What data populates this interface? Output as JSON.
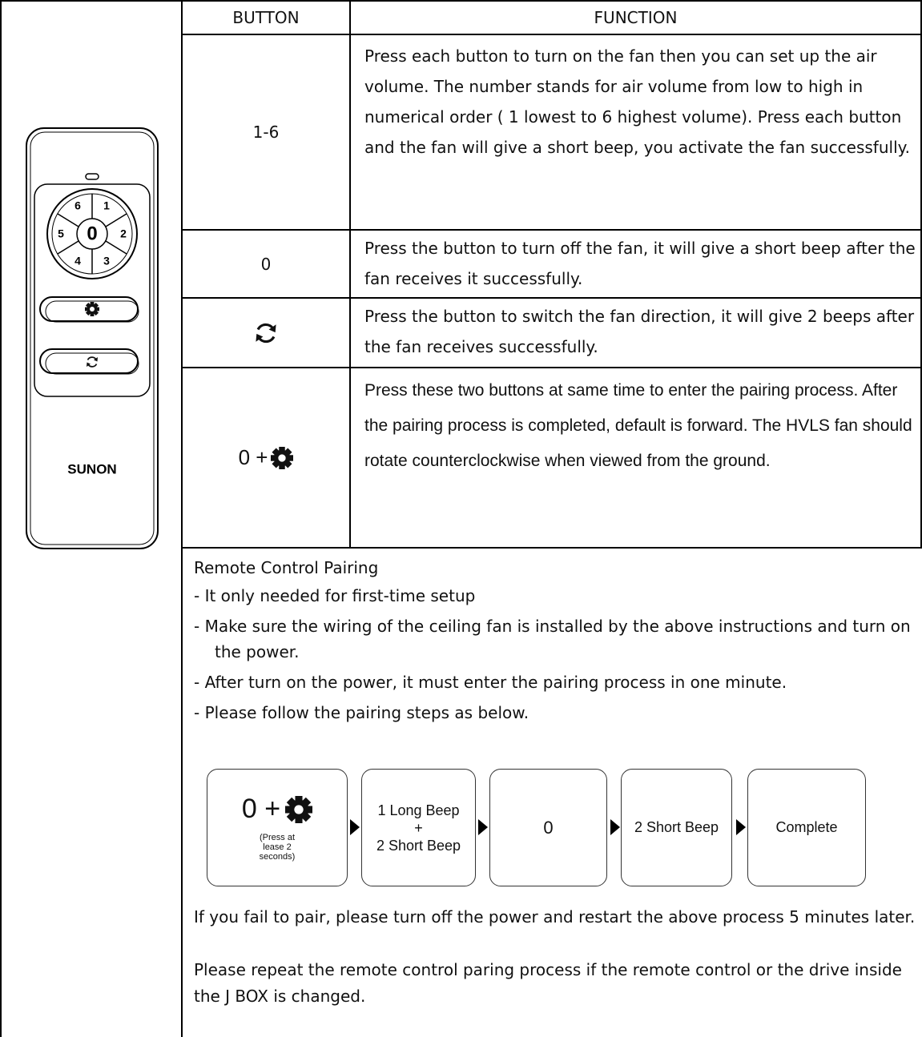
{
  "remote": {
    "buttons": [
      "6",
      "1",
      "5",
      "0",
      "2",
      "4",
      "3"
    ],
    "brand": "SUNON"
  },
  "table": {
    "header": [
      "BUTTON",
      "FUNCTION"
    ],
    "rows": [
      [
        "1-6",
        "Press each button to turn on the fan then you can set up the air volume. The number stands for air volume from low to high in numerical order ( 1 lowest to 6 highest volume). Press each button and the fan will give a short beep, you activate the fan successfully."
      ],
      [
        "0",
        "Press the button to turn off the fan, it will give a short beep after the fan receives it successfully."
      ],
      [
        "",
        "Press the button to switch the fan direction, it will give 2 beeps after the fan receives successfully."
      ],
      [
        "0 +",
        "Press these two buttons at same time to enter the pairing process. After the pairing process is completed, default is forward. The HVLS fan should rotate counterclockwise when viewed from the ground."
      ]
    ]
  },
  "pairing": {
    "title": "Remote Control Pairing",
    "items": [
      "- It only needed for first-time setup",
      "- Make sure the wiring of the ceiling fan is installed by the above instructions and turn on the power.",
      "- After turn on the power, it must enter the pairing process in one minute.",
      "- Please follow the pairing steps as below."
    ],
    "steps": [
      {
        "label": "0 +",
        "note": "(Press at lease 2 seconds)"
      },
      {
        "lines": [
          "1 Long Beep",
          "+",
          "2 Short Beep"
        ]
      },
      {
        "label": "0"
      },
      {
        "label": "2 Short Beep"
      },
      {
        "label": "Complete"
      }
    ],
    "notes": [
      "If you fail to pair, please turn off the power and restart the above process 5 minutes later.",
      "Please repeat the remote control paring process if the remote control or the drive inside the J BOX is changed."
    ]
  }
}
